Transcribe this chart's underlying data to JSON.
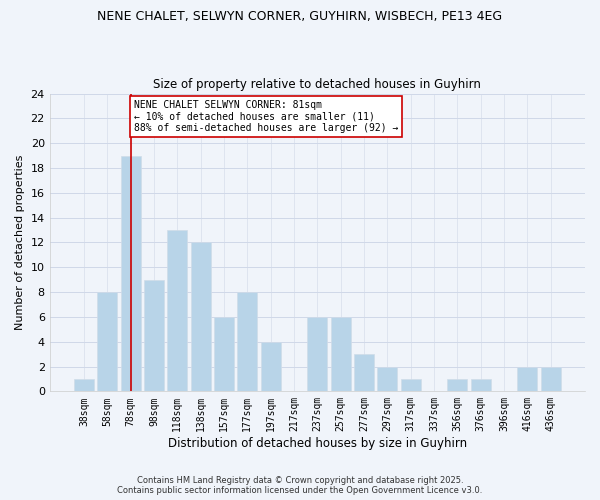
{
  "title_line1": "NENE CHALET, SELWYN CORNER, GUYHIRN, WISBECH, PE13 4EG",
  "title_line2": "Size of property relative to detached houses in Guyhirn",
  "bar_labels": [
    "38sqm",
    "58sqm",
    "78sqm",
    "98sqm",
    "118sqm",
    "138sqm",
    "157sqm",
    "177sqm",
    "197sqm",
    "217sqm",
    "237sqm",
    "257sqm",
    "277sqm",
    "297sqm",
    "317sqm",
    "337sqm",
    "356sqm",
    "376sqm",
    "396sqm",
    "416sqm",
    "436sqm"
  ],
  "bar_heights": [
    1,
    8,
    19,
    9,
    13,
    12,
    6,
    8,
    4,
    0,
    6,
    6,
    3,
    2,
    1,
    0,
    1,
    1,
    0,
    2,
    2
  ],
  "bar_color": "#b8d4e8",
  "bar_edge_color": "#d0dce8",
  "grid_color": "#d0d8e8",
  "background_color": "#f0f4fa",
  "vline_x_idx": 2,
  "vline_color": "#cc0000",
  "ylabel": "Number of detached properties",
  "xlabel": "Distribution of detached houses by size in Guyhirn",
  "ylim": [
    0,
    24
  ],
  "yticks": [
    0,
    2,
    4,
    6,
    8,
    10,
    12,
    14,
    16,
    18,
    20,
    22,
    24
  ],
  "annotation_title": "NENE CHALET SELWYN CORNER: 81sqm",
  "annotation_line2": "← 10% of detached houses are smaller (11)",
  "annotation_line3": "88% of semi-detached houses are larger (92) →",
  "ann_box_color": "#cc0000",
  "footer_line1": "Contains HM Land Registry data © Crown copyright and database right 2025.",
  "footer_line2": "Contains public sector information licensed under the Open Government Licence v3.0."
}
